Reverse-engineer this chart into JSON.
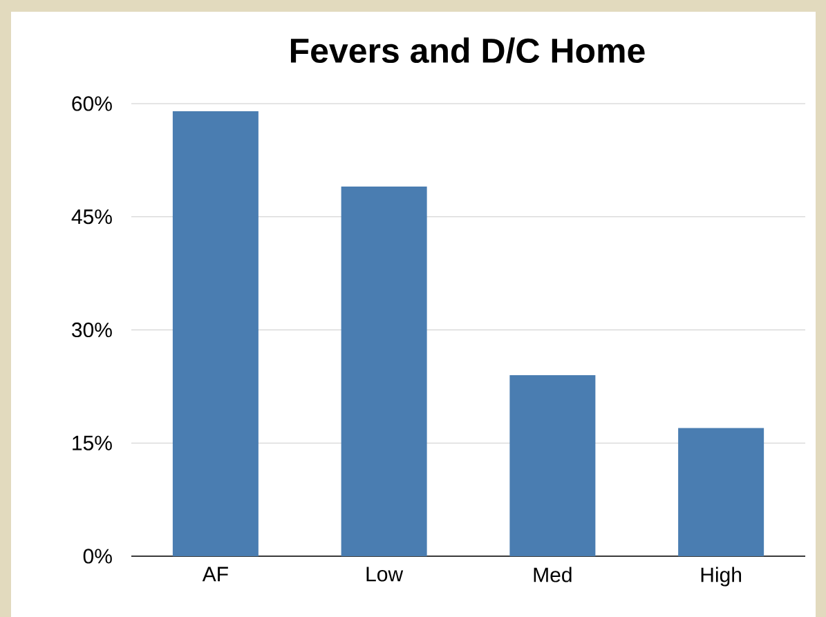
{
  "chart_data": {
    "type": "bar",
    "title": "Fevers and D/C Home",
    "categories": [
      "AF",
      "Low",
      "Med",
      "High"
    ],
    "values": [
      59,
      49,
      24,
      17
    ],
    "color": "#4a7db1",
    "ylim": [
      0,
      60
    ],
    "yticks": [
      {
        "value": 0,
        "label": "0%"
      },
      {
        "value": 15,
        "label": "15%"
      },
      {
        "value": 30,
        "label": "30%"
      },
      {
        "value": 45,
        "label": "45%"
      },
      {
        "value": 60,
        "label": "60%"
      }
    ],
    "grid": "y"
  }
}
